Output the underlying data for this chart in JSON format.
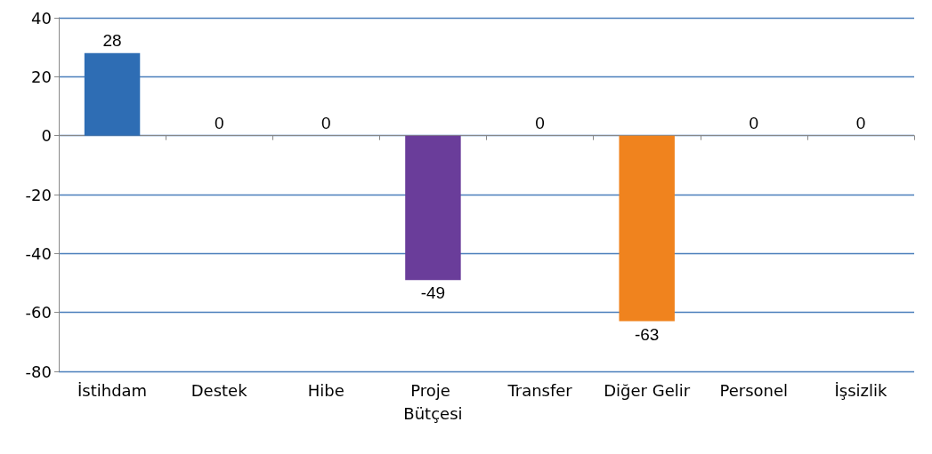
{
  "chart_data": {
    "type": "bar",
    "categories": [
      "İstihdam",
      "Destek",
      "Hibe",
      "Proje Bütçesi",
      "Transfer",
      "Diğer Gelir",
      "Personel",
      "İşsizlik"
    ],
    "values": [
      28,
      0,
      0,
      -49,
      0,
      -63,
      0,
      0
    ],
    "colors": [
      "#2e6db4",
      "#4f81bd",
      "#4f81bd",
      "#6a3d9a",
      "#4f81bd",
      "#f0831e",
      "#4f81bd",
      "#4f81bd"
    ],
    "ylim": [
      -80,
      40
    ],
    "yticks": [
      -80,
      -60,
      -40,
      -20,
      0,
      20,
      40
    ],
    "grid": "y",
    "data_labels": true
  }
}
